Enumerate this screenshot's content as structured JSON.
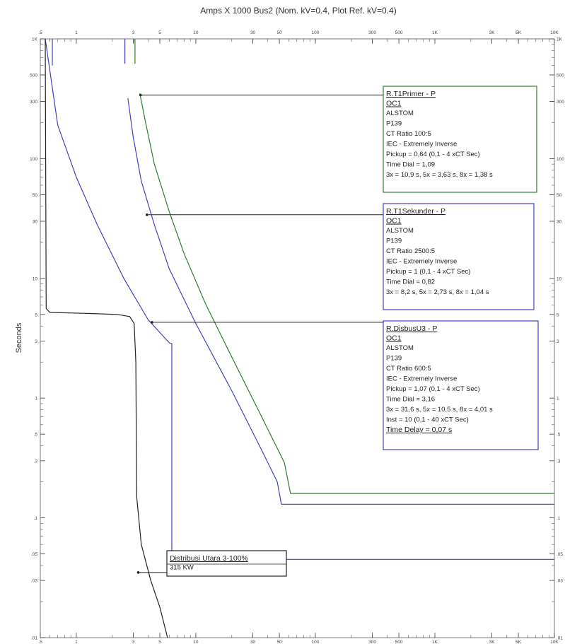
{
  "chart_data": {
    "type": "line",
    "title": "Amps X 1000  Bus2 (Nom. kV=0.4, Plot Ref. kV=0.4)",
    "xlabel": "",
    "ylabel": "Seconds",
    "x_scale": "log",
    "y_scale": "log",
    "xlim": [
      0.5,
      10000
    ],
    "ylim": [
      0.01,
      1000
    ],
    "x_ticks": [
      {
        "v": 0.5,
        "label": ".5"
      },
      {
        "v": 1,
        "label": "1"
      },
      {
        "v": 3,
        "label": "3"
      },
      {
        "v": 5,
        "label": "5"
      },
      {
        "v": 10,
        "label": "10"
      },
      {
        "v": 30,
        "label": "30"
      },
      {
        "v": 50,
        "label": "50"
      },
      {
        "v": 100,
        "label": "100"
      },
      {
        "v": 300,
        "label": "300"
      },
      {
        "v": 500,
        "label": "500"
      },
      {
        "v": 1000,
        "label": "1K"
      },
      {
        "v": 3000,
        "label": "3K"
      },
      {
        "v": 5000,
        "label": "5K"
      },
      {
        "v": 10000,
        "label": "10K"
      }
    ],
    "y_ticks": [
      {
        "v": 1000,
        "label": "1K"
      },
      {
        "v": 500,
        "label": "500"
      },
      {
        "v": 300,
        "label": "300"
      },
      {
        "v": 100,
        "label": "100"
      },
      {
        "v": 50,
        "label": "50"
      },
      {
        "v": 30,
        "label": "30"
      },
      {
        "v": 10,
        "label": "10"
      },
      {
        "v": 5,
        "label": "5"
      },
      {
        "v": 3,
        "label": "3"
      },
      {
        "v": 1,
        "label": "1"
      },
      {
        "v": 0.5,
        "label": ".5"
      },
      {
        "v": 0.3,
        "label": ".3"
      },
      {
        "v": 0.1,
        "label": ".1"
      },
      {
        "v": 0.05,
        "label": ".05"
      },
      {
        "v": 0.03,
        "label": ".03"
      },
      {
        "v": 0.01,
        "label": ".01"
      }
    ],
    "series": [
      {
        "color": "#2e7d2e",
        "x": [
          3.4,
          3.8,
          4.5,
          6,
          8,
          12,
          20,
          35,
          55,
          62,
          10000
        ],
        "y": [
          350,
          200,
          90,
          36,
          16,
          6.2,
          2.2,
          0.72,
          0.29,
          0.16,
          0.16
        ]
      },
      {
        "color": "#3f3fc8",
        "x": [
          2.7,
          3,
          3.5,
          4.5,
          6,
          10,
          20,
          35,
          48,
          52,
          10000
        ],
        "y": [
          320,
          150,
          65,
          28,
          12,
          4.2,
          1.15,
          0.38,
          0.2,
          0.13,
          0.13
        ]
      },
      {
        "color": "#3f3fc8",
        "x": [
          0.55,
          0.7,
          1,
          1.5,
          2.5,
          4,
          6,
          6.3,
          6.3,
          10000
        ],
        "y": [
          1000,
          190,
          70,
          28,
          10,
          4.5,
          2.9,
          2.85,
          0.045,
          0.045
        ]
      },
      {
        "color": "#222222",
        "x": [
          0.55,
          0.56,
          0.6,
          1.2,
          2.2,
          2.8,
          3.05,
          3.15,
          3.2,
          3.5,
          4.2,
          5,
          5.8
        ],
        "y": [
          1000,
          5.6,
          5.2,
          5.1,
          5.0,
          4.8,
          4.2,
          2.0,
          0.15,
          0.06,
          0.03,
          0.018,
          0.01
        ]
      },
      {
        "color": "#3f3fc8",
        "x": [
          0.63,
          0.63
        ],
        "y": [
          1000,
          600
        ]
      },
      {
        "color": "#3f3fc8",
        "x": [
          2.55,
          2.55
        ],
        "y": [
          1000,
          620
        ]
      },
      {
        "color": "#2e7d2e",
        "x": [
          3.1,
          3.1
        ],
        "y": [
          1000,
          620
        ]
      }
    ],
    "boxes": [
      {
        "id": "rt1primer",
        "color": "#2e7d2e",
        "title": "R.T1Primer - P",
        "lines": [
          "OC1",
          "ALSTOM",
          "P139",
          "CT Ratio 100:5",
          "IEC - Extremely Inverse",
          "Pickup = 0,64 (0,1 - 4  xCT Sec)",
          "Time Dial = 1,09",
          "3x = 10,9 s, 5x = 3,63 s, 8x = 1,38 s"
        ],
        "underlined": [
          0
        ],
        "leader_x": 3.45,
        "leader_y": 340
      },
      {
        "id": "rt1sekunder",
        "color": "#3f3fc8",
        "title": "R.T1Sekunder - P",
        "lines": [
          "OC1",
          "ALSTOM",
          "P139",
          "CT Ratio 2500:5",
          "IEC - Extremely Inverse",
          "Pickup = 1 (0,1 - 4  xCT Sec)",
          "Time Dial = 0,82",
          "3x = 8,2 s, 5x = 2,73 s, 8x = 1,04 s"
        ],
        "underlined": [
          0
        ],
        "leader_x": 3.9,
        "leader_y": 34
      },
      {
        "id": "rdisbusu3",
        "color": "#3f3fc8",
        "title": "R.DisbusU3 - P",
        "lines": [
          "OC1",
          "ALSTOM",
          "P139",
          "CT Ratio 600:5",
          "IEC - Extremely Inverse",
          "Pickup = 1,07 (0,1 - 4  xCT Sec)",
          "Time Dial = 3,16",
          "3x = 31,6 s, 5x = 10,5 s, 8x = 4,01 s",
          "Inst = 10 (0,1 - 40  xCT Sec)",
          "Time Delay = 0,07 s"
        ],
        "underlined": [
          0,
          9
        ],
        "leader_x": 4.3,
        "leader_y": 4.3
      },
      {
        "id": "distribusi",
        "color": "#222222",
        "title": "Distribusi Utara 3-100%",
        "lines": [
          "315 KW"
        ],
        "underlined": [],
        "leader_x": 3.3,
        "leader_y": 0.035
      }
    ]
  }
}
